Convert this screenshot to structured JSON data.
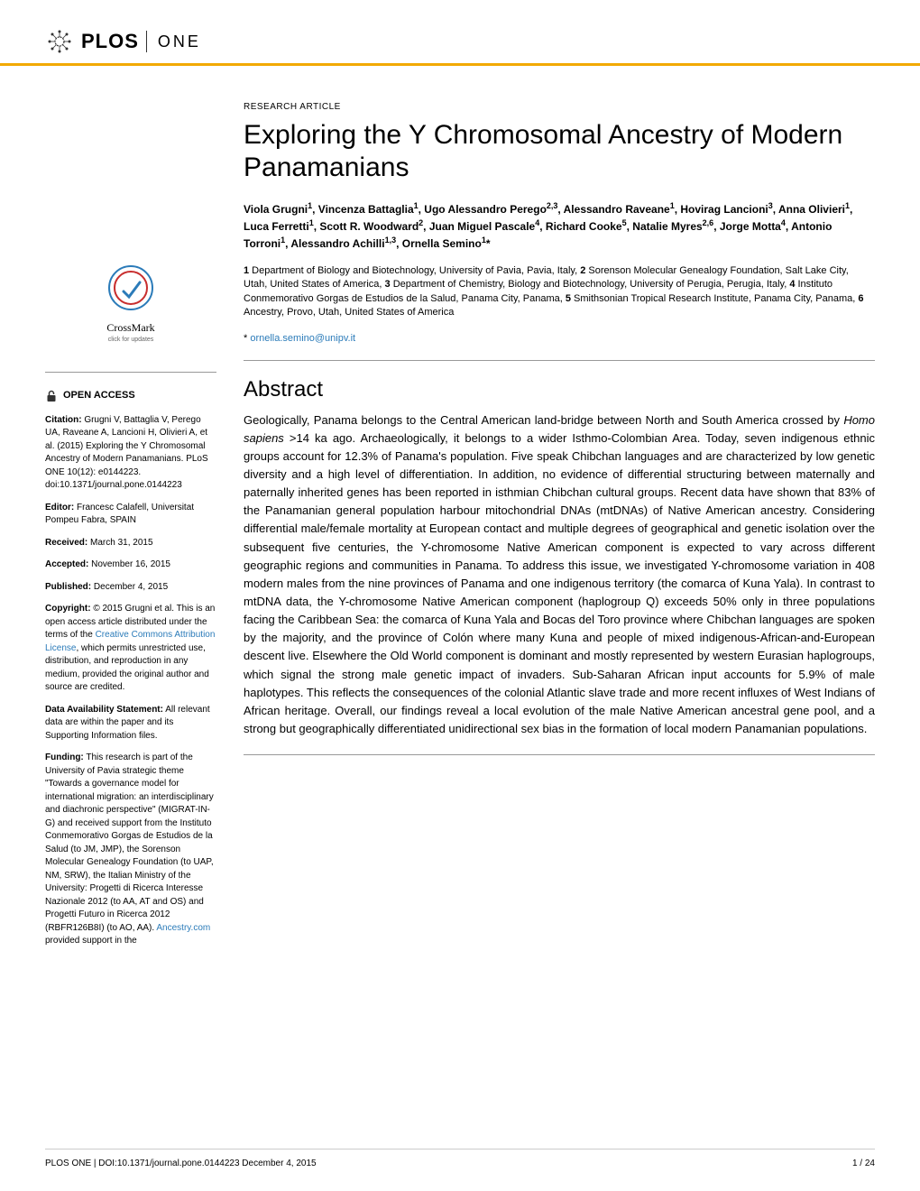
{
  "header": {
    "logo_text": "PLOS",
    "journal": "ONE"
  },
  "crossmark": {
    "label": "CrossMark",
    "sublabel": "click for updates"
  },
  "sidebar": {
    "open_access": "OPEN ACCESS",
    "citation_label": "Citation:",
    "citation_text": "Grugni V, Battaglia V, Perego UA, Raveane A, Lancioni H, Olivieri A, et al. (2015) Exploring the Y Chromosomal Ancestry of Modern Panamanians. PLoS ONE 10(12): e0144223. doi:10.1371/journal.pone.0144223",
    "editor_label": "Editor:",
    "editor_text": "Francesc Calafell, Universitat Pompeu Fabra, SPAIN",
    "received_label": "Received:",
    "received_text": "March 31, 2015",
    "accepted_label": "Accepted:",
    "accepted_text": "November 16, 2015",
    "published_label": "Published:",
    "published_text": "December 4, 2015",
    "copyright_label": "Copyright:",
    "copyright_text": "© 2015 Grugni et al. This is an open access article distributed under the terms of the ",
    "license_link": "Creative Commons Attribution License",
    "copyright_text2": ", which permits unrestricted use, distribution, and reproduction in any medium, provided the original author and source are credited.",
    "data_label": "Data Availability Statement:",
    "data_text": "All relevant data are within the paper and its Supporting Information files.",
    "funding_label": "Funding:",
    "funding_text": "This research is part of the University of Pavia strategic theme \"Towards a governance model for international migration: an interdisciplinary and diachronic perspective\" (MIGRAT-IN-G) and received support from the Instituto Conmemorativo Gorgas de Estudios de la Salud (to JM, JMP), the Sorenson Molecular Genealogy Foundation (to UAP, NM, SRW), the Italian Ministry of the University: Progetti di Ricerca Interesse Nazionale 2012 (to AA, AT and OS) and Progetti Futuro in Ricerca 2012 (RBFR126B8I) (to AO, AA). ",
    "funding_link": "Ancestry.com",
    "funding_text2": " provided support in the"
  },
  "article": {
    "type": "RESEARCH ARTICLE",
    "title": "Exploring the Y Chromosomal Ancestry of Modern Panamanians",
    "authors_html": "Viola Grugni<sup>1</sup>, Vincenza Battaglia<sup>1</sup>, Ugo Alessandro Perego<sup>2,3</sup>, Alessandro Raveane<sup>1</sup>, Hovirag Lancioni<sup>3</sup>, Anna Olivieri<sup>1</sup>, Luca Ferretti<sup>1</sup>, Scott R. Woodward<sup>2</sup>, Juan Miguel Pascale<sup>4</sup>, Richard Cooke<sup>5</sup>, Natalie Myres<sup>2,6</sup>, Jorge Motta<sup>4</sup>, Antonio Torroni<sup>1</sup>, Alessandro Achilli<sup>1,3</sup>, Ornella Semino<sup>1</sup>*",
    "affiliations_html": "<b>1</b> Department of Biology and Biotechnology, University of Pavia, Pavia, Italy, <b>2</b> Sorenson Molecular Genealogy Foundation, Salt Lake City, Utah, United States of America, <b>3</b> Department of Chemistry, Biology and Biotechnology, University of Perugia, Perugia, Italy, <b>4</b> Instituto Conmemorativo Gorgas de Estudios de la Salud, Panama City, Panama, <b>5</b> Smithsonian Tropical Research Institute, Panama City, Panama, <b>6</b> Ancestry, Provo, Utah, United States of America",
    "corresponding_prefix": "* ",
    "corresponding_email": "ornella.semino@unipv.it",
    "abstract_heading": "Abstract",
    "abstract_html": "Geologically, Panama belongs to the Central American land-bridge between North and South America crossed by <em>Homo sapiens</em> &gt;14 ka ago. Archaeologically, it belongs to a wider Isthmo-Colombian Area. Today, seven indigenous ethnic groups account for 12.3% of Panama's population. Five speak Chibchan languages and are characterized by low genetic diversity and a high level of differentiation. In addition, no evidence of differential structuring between maternally and paternally inherited genes has been reported in isthmian Chibchan cultural groups. Recent data have shown that 83% of the Panamanian general population harbour mitochondrial DNAs (mtDNAs) of Native American ancestry. Considering differential male/female mortality at European contact and multiple degrees of geographical and genetic isolation over the subsequent five centuries, the Y-chromosome Native American component is expected to vary across different geographic regions and communities in Panama. To address this issue, we investigated Y-chromosome variation in 408 modern males from the nine provinces of Panama and one indigenous territory (the comarca of Kuna Yala). In contrast to mtDNA data, the Y-chromosome Native American component (haplogroup Q) exceeds 50% only in three populations facing the Caribbean Sea: the comarca of Kuna Yala and Bocas del Toro province where Chibchan languages are spoken by the majority, and the province of Colón where many Kuna and people of mixed indigenous-African-and-European descent live. Elsewhere the Old World component is dominant and mostly represented by western Eurasian haplogroups, which signal the strong male genetic impact of invaders. Sub-Saharan African input accounts for 5.9% of male haplotypes. This reflects the consequences of the colonial Atlantic slave trade and more recent influxes of West Indians of African heritage. Overall, our findings reveal a local evolution of the male Native American ancestral gene pool, and a strong but geographically differentiated unidirectional sex bias in the formation of local modern Panamanian populations."
  },
  "footer": {
    "left": "PLOS ONE | DOI:10.1371/journal.pone.0144223   December 4, 2015",
    "right": "1 / 24"
  },
  "colors": {
    "accent": "#f2a900",
    "link": "#2b7bb9",
    "text": "#000000",
    "rule": "#999999"
  }
}
